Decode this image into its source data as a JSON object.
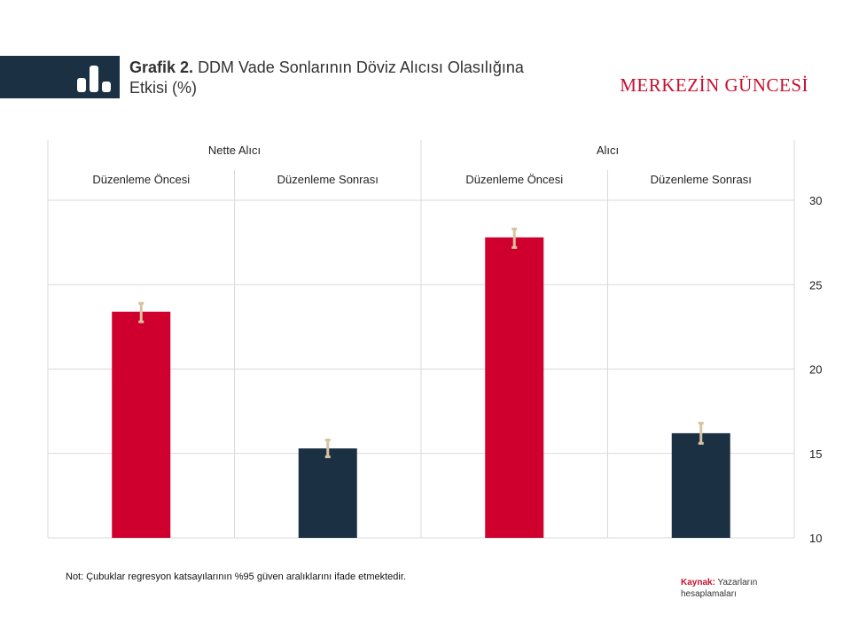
{
  "header": {
    "title_bold": "Grafik 2.",
    "title_rest": "DDM Vade Sonlarının Döviz Alıcısı Olasılığına Etkisi (%)",
    "brand": "MERKEZİN GÜNCESİ",
    "logo_icon": "bar-chart-icon"
  },
  "chart_data": {
    "type": "bar",
    "groups": [
      {
        "label": "Nette Alıcı",
        "categories": [
          "Düzenleme Öncesi",
          "Düzenleme Sonrası"
        ]
      },
      {
        "label": "Alıcı",
        "categories": [
          "Düzenleme Öncesi",
          "Düzenleme Sonrası"
        ]
      }
    ],
    "categories": [
      "Düzenleme Öncesi",
      "Düzenleme Sonrası",
      "Düzenleme Öncesi",
      "Düzenleme Sonrası"
    ],
    "values": [
      23.4,
      15.3,
      27.8,
      16.2
    ],
    "error_low": [
      22.8,
      14.8,
      27.2,
      15.6
    ],
    "error_high": [
      23.9,
      15.8,
      28.3,
      16.8
    ],
    "bar_colors": [
      "#d0002e",
      "#1c3044",
      "#d0002e",
      "#1c3044"
    ],
    "error_color": "#d9c2a0",
    "ylim": [
      10,
      30
    ],
    "yticks": [
      10,
      15,
      20,
      25,
      30
    ],
    "y_axis_side": "right",
    "grid": true
  },
  "footer": {
    "note": "Not: Çubuklar regresyon katsayılarının %95 güven aralıklarını ifade etmektedir.",
    "source_label": "Kaynak:",
    "source_text": "Yazarların hesaplamaları"
  }
}
